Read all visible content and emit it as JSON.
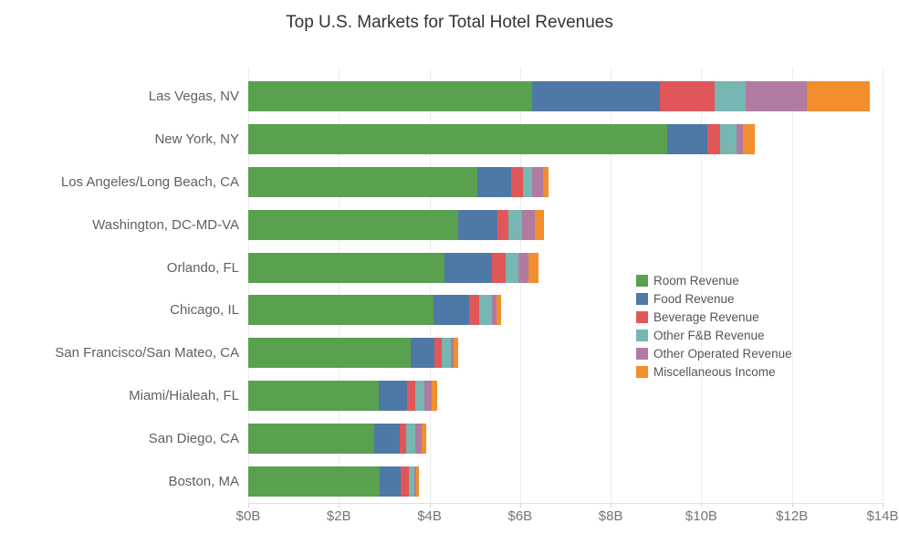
{
  "title": "Top U.S. Markets for Total Hotel Revenues",
  "chart_data": {
    "type": "bar",
    "orientation": "horizontal",
    "stacked": true,
    "title": "Top U.S. Markets for Total Hotel Revenues",
    "categories": [
      "Las Vegas, NV",
      "New York, NY",
      "Los Angeles/Long Beach, CA",
      "Washington, DC-MD-VA",
      "Orlando, FL",
      "Chicago, IL",
      "San Francisco/San Mateo, CA",
      "Miami/Hialeah, FL",
      "San Diego, CA",
      "Boston, MA"
    ],
    "series": [
      {
        "name": "Room Revenue",
        "color": "#59a14f",
        "values": [
          6.26,
          9.25,
          5.05,
          4.63,
          4.34,
          4.09,
          3.58,
          2.88,
          2.78,
          2.91
        ]
      },
      {
        "name": "Food Revenue",
        "color": "#4e79a7",
        "values": [
          2.82,
          0.88,
          0.75,
          0.87,
          1.04,
          0.78,
          0.53,
          0.62,
          0.56,
          0.46
        ]
      },
      {
        "name": "Beverage Revenue",
        "color": "#e15759",
        "values": [
          1.21,
          0.29,
          0.27,
          0.25,
          0.3,
          0.23,
          0.16,
          0.19,
          0.15,
          0.17
        ]
      },
      {
        "name": "Other F&B Revenue",
        "color": "#76b7b2",
        "values": [
          0.68,
          0.35,
          0.2,
          0.3,
          0.29,
          0.28,
          0.2,
          0.2,
          0.19,
          0.12
        ]
      },
      {
        "name": "Other Operated Revenue",
        "color": "#b07aa1",
        "values": [
          1.36,
          0.14,
          0.24,
          0.28,
          0.21,
          0.1,
          0.07,
          0.16,
          0.15,
          0.05
        ]
      },
      {
        "name": "Miscellaneous Income",
        "color": "#f28e2b",
        "values": [
          1.38,
          0.28,
          0.12,
          0.2,
          0.22,
          0.1,
          0.09,
          0.13,
          0.09,
          0.06
        ]
      }
    ],
    "totals": [
      13.71,
      11.19,
      6.63,
      6.53,
      6.4,
      5.58,
      4.63,
      4.18,
      3.92,
      3.77
    ],
    "x_ticks": [
      "$0B",
      "$2B",
      "$4B",
      "$6B",
      "$8B",
      "$10B",
      "$12B",
      "$14B"
    ],
    "x_tick_values": [
      0,
      2,
      4,
      6,
      8,
      10,
      12,
      14
    ],
    "xlim": [
      0,
      14
    ],
    "xlabel": "",
    "ylabel": "",
    "grid": true,
    "legend_position": "inside-right",
    "colors": {
      "title_text": "#333333",
      "axis_text": "#757575",
      "category_text": "#606060",
      "legend_text": "#555555",
      "gridline": "#ececec"
    }
  }
}
